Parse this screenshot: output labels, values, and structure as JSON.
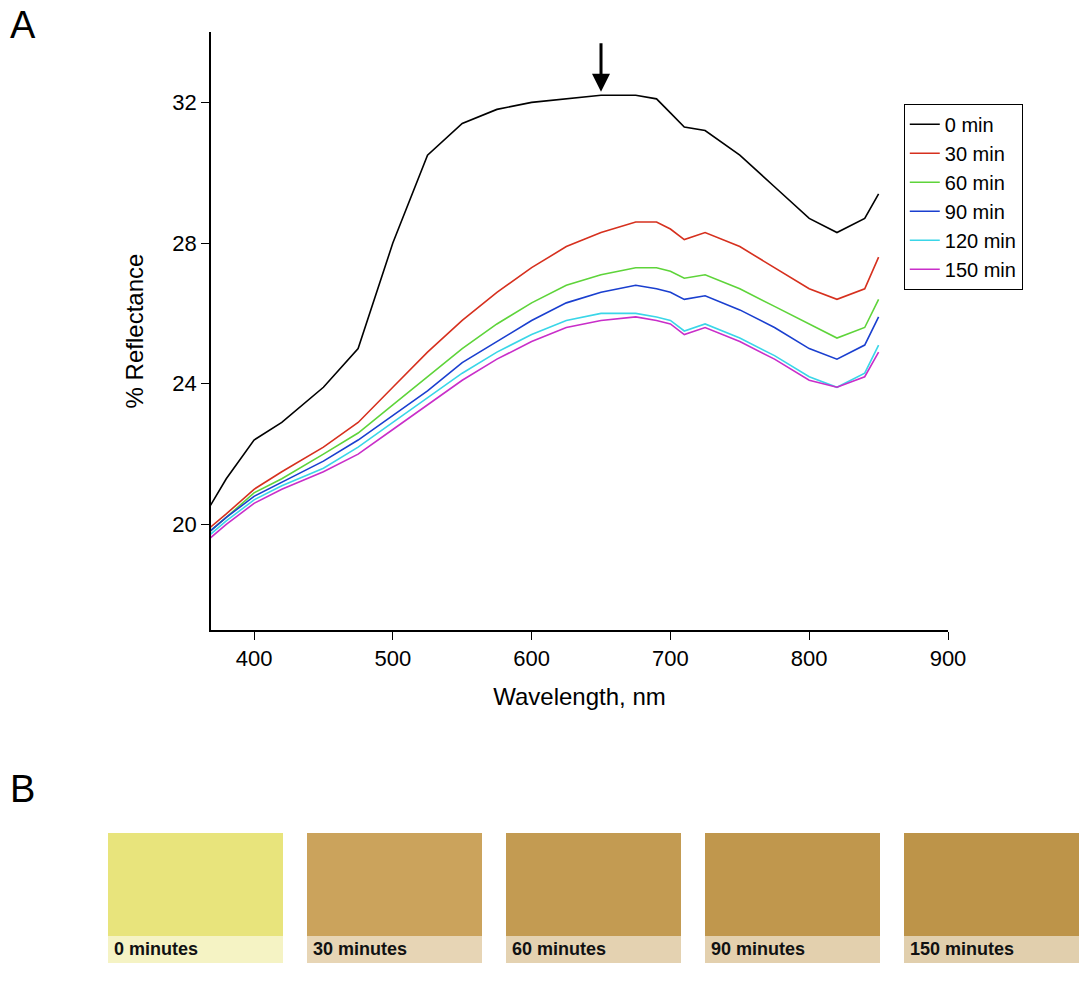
{
  "chart_data": {
    "type": "line",
    "panel_label": "A",
    "x_label": "Wavelength, nm",
    "y_label": "% Reflectance",
    "x": [
      368,
      380,
      400,
      420,
      450,
      475,
      500,
      525,
      550,
      575,
      600,
      625,
      650,
      675,
      690,
      700,
      710,
      725,
      750,
      775,
      800,
      820,
      840,
      850
    ],
    "series": [
      {
        "name": "0 min",
        "color": "#000000",
        "values": [
          20.5,
          21.3,
          22.4,
          22.9,
          23.9,
          25.0,
          28.0,
          30.5,
          31.4,
          31.8,
          32.0,
          32.1,
          32.2,
          32.2,
          32.1,
          31.7,
          31.3,
          31.2,
          30.5,
          29.6,
          28.7,
          28.3,
          28.7,
          29.4
        ]
      },
      {
        "name": "30 min",
        "color": "#d6301e",
        "values": [
          19.9,
          20.3,
          21.0,
          21.5,
          22.2,
          22.9,
          23.9,
          24.9,
          25.8,
          26.6,
          27.3,
          27.9,
          28.3,
          28.6,
          28.6,
          28.4,
          28.1,
          28.3,
          27.9,
          27.3,
          26.7,
          26.4,
          26.7,
          27.6
        ]
      },
      {
        "name": "60 min",
        "color": "#5ed43a",
        "values": [
          19.8,
          20.2,
          20.9,
          21.3,
          22.0,
          22.6,
          23.4,
          24.2,
          25.0,
          25.7,
          26.3,
          26.8,
          27.1,
          27.3,
          27.3,
          27.2,
          27.0,
          27.1,
          26.7,
          26.2,
          25.7,
          25.3,
          25.6,
          26.4
        ]
      },
      {
        "name": "90 min",
        "color": "#1a3fcf",
        "values": [
          19.8,
          20.2,
          20.8,
          21.2,
          21.8,
          22.4,
          23.1,
          23.8,
          24.6,
          25.2,
          25.8,
          26.3,
          26.6,
          26.8,
          26.7,
          26.6,
          26.4,
          26.5,
          26.1,
          25.6,
          25.0,
          24.7,
          25.1,
          25.9
        ]
      },
      {
        "name": "120 min",
        "color": "#3ad6e8",
        "values": [
          19.7,
          20.1,
          20.7,
          21.1,
          21.6,
          22.2,
          22.9,
          23.6,
          24.3,
          24.9,
          25.4,
          25.8,
          26.0,
          26.0,
          25.9,
          25.8,
          25.5,
          25.7,
          25.3,
          24.8,
          24.2,
          23.9,
          24.3,
          25.1
        ]
      },
      {
        "name": "150 min",
        "color": "#c92ec9",
        "values": [
          19.6,
          20.0,
          20.6,
          21.0,
          21.5,
          22.0,
          22.7,
          23.4,
          24.1,
          24.7,
          25.2,
          25.6,
          25.8,
          25.9,
          25.8,
          25.7,
          25.4,
          25.6,
          25.2,
          24.7,
          24.1,
          23.9,
          24.2,
          24.9
        ]
      }
    ],
    "xlim": [
      369,
      900
    ],
    "ylim": [
      17,
      34
    ],
    "xticks": [
      400,
      500,
      600,
      700,
      800,
      900
    ],
    "yticks": [
      20,
      24,
      28,
      32
    ],
    "grid": false,
    "legend": "top right",
    "annotations": [
      {
        "x": 650,
        "y": 32.3,
        "marker": "arrow"
      }
    ]
  },
  "panel_B": {
    "panel_label": "B",
    "swatches": [
      {
        "label": "0 minutes",
        "color": "#e8e47c"
      },
      {
        "label": "30 minutes",
        "color": "#cba35c"
      },
      {
        "label": "60 minutes",
        "color": "#c39b52"
      },
      {
        "label": "90 minutes",
        "color": "#c0974d"
      },
      {
        "label": "150 minutes",
        "color": "#bd9449"
      }
    ]
  }
}
